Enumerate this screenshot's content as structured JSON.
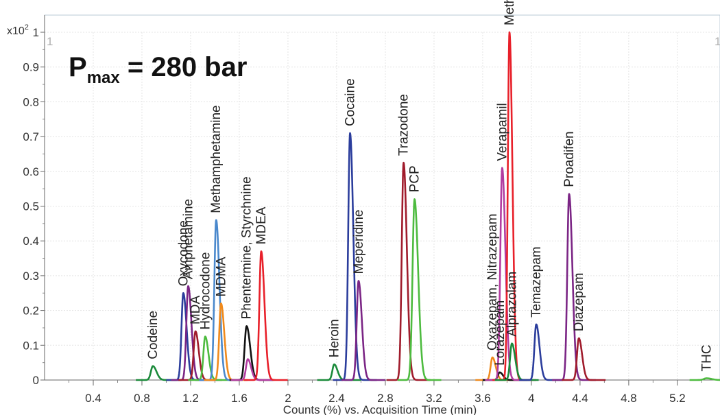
{
  "chart_data": {
    "type": "line",
    "title": "",
    "annotation": {
      "symbol": "P",
      "subscript": "max",
      "text": " = 280 bar"
    },
    "xlabel": "Counts (%) vs. Acquisition Time (min)",
    "ylabel": "",
    "y_multiplier": {
      "base": "x10",
      "exponent": "2"
    },
    "corner_labels": [
      "1",
      "1"
    ],
    "xlim": [
      0.0,
      5.55
    ],
    "ylim": [
      0,
      1.0
    ],
    "x_ticks": [
      "0.4",
      "0.8",
      "1.2",
      "1.6",
      "2",
      "2.4",
      "2.8",
      "3.2",
      "3.6",
      "4",
      "4.4",
      "4.8",
      "5.2"
    ],
    "y_ticks": [
      "0",
      "0.1",
      "0.2",
      "0.3",
      "0.4",
      "0.5",
      "0.6",
      "0.7",
      "0.8",
      "0.9",
      "1"
    ],
    "grid": true,
    "peaks": [
      {
        "label": "Codeine",
        "rt": 0.89,
        "height": 0.04,
        "width": 0.022,
        "color": "#1a8a3a"
      },
      {
        "label": "Oxycodone",
        "rt": 1.14,
        "height": 0.25,
        "width": 0.02,
        "color": "#2b3d9c"
      },
      {
        "label": "Amphetamine",
        "rt": 1.18,
        "height": 0.27,
        "width": 0.02,
        "color": "#7b2585"
      },
      {
        "label": "MDA",
        "rt": 1.24,
        "height": 0.14,
        "width": 0.02,
        "color": "#a01c2c"
      },
      {
        "label": "Hydrocodone",
        "rt": 1.32,
        "height": 0.125,
        "width": 0.02,
        "color": "#4dbb3f"
      },
      {
        "label": "Methamphetamine",
        "rt": 1.41,
        "height": 0.46,
        "width": 0.02,
        "color": "#4a88cc"
      },
      {
        "label": "MDMA",
        "rt": 1.45,
        "height": 0.22,
        "width": 0.02,
        "color": "#f08a1c"
      },
      {
        "label": "Phentermine, Styrchnine",
        "rt": 1.66,
        "height": 0.155,
        "width": 0.022,
        "color": "#111111"
      },
      {
        "label": "",
        "rt": 1.67,
        "height": 0.06,
        "width": 0.02,
        "color": "#b23ca0"
      },
      {
        "label": "MDEA",
        "rt": 1.78,
        "height": 0.37,
        "width": 0.02,
        "color": "#e8202a"
      },
      {
        "label": "Heroin",
        "rt": 2.38,
        "height": 0.045,
        "width": 0.02,
        "color": "#1a8a3a"
      },
      {
        "label": "Cocaine",
        "rt": 2.51,
        "height": 0.71,
        "width": 0.02,
        "color": "#2b3d9c"
      },
      {
        "label": "Meperidine",
        "rt": 2.58,
        "height": 0.285,
        "width": 0.02,
        "color": "#7b2585"
      },
      {
        "label": "Trazodone",
        "rt": 2.95,
        "height": 0.625,
        "width": 0.02,
        "color": "#a01c2c"
      },
      {
        "label": "PCP",
        "rt": 3.04,
        "height": 0.52,
        "width": 0.022,
        "color": "#4dbb3f"
      },
      {
        "label": "Oxazepam, Nitrazepam",
        "rt": 3.68,
        "height": 0.065,
        "width": 0.02,
        "color": "#f08a1c"
      },
      {
        "label": "Lorazepam",
        "rt": 3.74,
        "height": 0.022,
        "width": 0.02,
        "color": "#111111"
      },
      {
        "label": "Verapamil",
        "rt": 3.76,
        "height": 0.61,
        "width": 0.02,
        "color": "#b23ca0"
      },
      {
        "label": "Methadone",
        "rt": 3.82,
        "height": 1.0,
        "width": 0.018,
        "color": "#e8202a"
      },
      {
        "label": "Alprazolam",
        "rt": 3.84,
        "height": 0.105,
        "width": 0.02,
        "color": "#1a8a3a"
      },
      {
        "label": "Temazepam",
        "rt": 4.04,
        "height": 0.16,
        "width": 0.02,
        "color": "#2b3d9c"
      },
      {
        "label": "Proadifen",
        "rt": 4.31,
        "height": 0.535,
        "width": 0.02,
        "color": "#7b2585"
      },
      {
        "label": "Diazepam",
        "rt": 4.39,
        "height": 0.12,
        "width": 0.02,
        "color": "#a01c2c"
      },
      {
        "label": "THC",
        "rt": 5.44,
        "height": 0.005,
        "width": 0.03,
        "color": "#4dbb3f"
      }
    ]
  }
}
